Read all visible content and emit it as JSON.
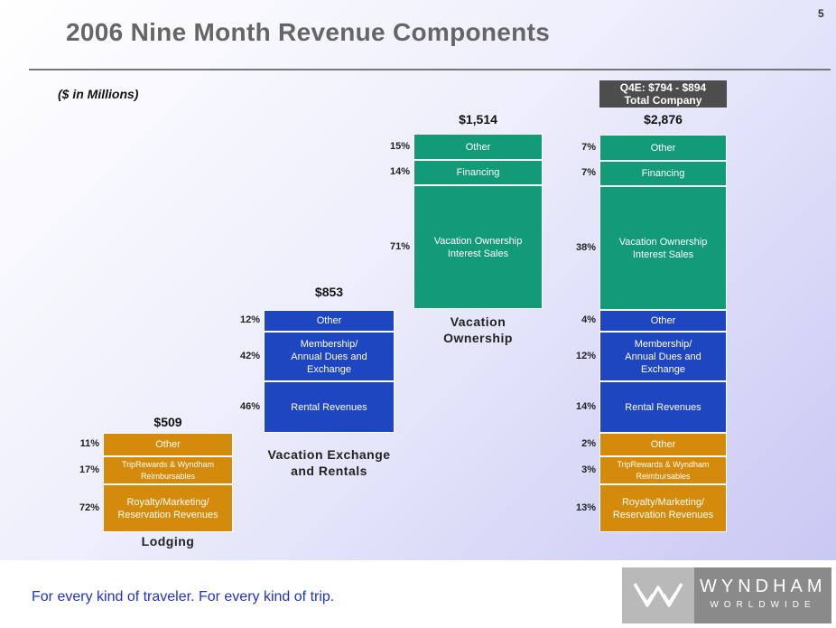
{
  "page_number": "5",
  "title": "2006 Nine Month Revenue Components",
  "units_note": "($ in Millions)",
  "q4e_note": {
    "line1": "Q4E: $794 - $894",
    "line2": "Total Company"
  },
  "footer": "For every kind of traveler. For every kind of trip.",
  "logo": {
    "name": "WYNDHAM",
    "sub": "WORLDWIDE"
  },
  "colors": {
    "lodging": "#d48a0a",
    "vacation_exchange": "#1e46c0",
    "vacation_ownership": "#139a78"
  },
  "chart_data": {
    "type": "bar",
    "stacked": true,
    "title": "2006 Nine Month Revenue Components",
    "units": "$ in Millions",
    "bars": [
      {
        "id": "lodging",
        "name": "Lodging",
        "total_label": "$509",
        "total": 509,
        "segments": [
          {
            "label": "Royalty/Marketing/\nReservation Revenues",
            "pct_label": "72%",
            "pct": 72,
            "color_key": "lodging"
          },
          {
            "label": "TripRewards & Wyndham\nReimbursables",
            "pct_label": "17%",
            "pct": 17,
            "color_key": "lodging",
            "small": true
          },
          {
            "label": "Other",
            "pct_label": "11%",
            "pct": 11,
            "color_key": "lodging"
          }
        ]
      },
      {
        "id": "vacation_exchange",
        "name": "Vacation Exchange\nand Rentals",
        "total_label": "$853",
        "total": 853,
        "segments": [
          {
            "label": "Rental Revenues",
            "pct_label": "46%",
            "pct": 46,
            "color_key": "vacation_exchange"
          },
          {
            "label": "Membership/\nAnnual Dues and\nExchange",
            "pct_label": "42%",
            "pct": 42,
            "color_key": "vacation_exchange"
          },
          {
            "label": "Other",
            "pct_label": "12%",
            "pct": 12,
            "color_key": "vacation_exchange"
          }
        ]
      },
      {
        "id": "vacation_ownership",
        "name": "Vacation\nOwnership",
        "total_label": "$1,514",
        "total": 1514,
        "segments": [
          {
            "label": "Vacation Ownership\nInterest Sales",
            "pct_label": "71%",
            "pct": 71,
            "color_key": "vacation_ownership"
          },
          {
            "label": "Financing",
            "pct_label": "14%",
            "pct": 14,
            "color_key": "vacation_ownership"
          },
          {
            "label": "Other",
            "pct_label": "15%",
            "pct": 15,
            "color_key": "vacation_ownership"
          }
        ]
      },
      {
        "id": "total_company",
        "name": "",
        "total_label": "$2,876",
        "total": 2876,
        "segments": [
          {
            "label": "Royalty/Marketing/\nReservation Revenues",
            "pct_label": "13%",
            "pct": 13,
            "color_key": "lodging"
          },
          {
            "label": "TripRewards & Wyndham\nReimbursables",
            "pct_label": "3%",
            "pct": 3,
            "color_key": "lodging",
            "small": true
          },
          {
            "label": "Other",
            "pct_label": "2%",
            "pct": 2,
            "color_key": "lodging"
          },
          {
            "label": "Rental Revenues",
            "pct_label": "14%",
            "pct": 14,
            "color_key": "vacation_exchange"
          },
          {
            "label": "Membership/\nAnnual Dues and\nExchange",
            "pct_label": "12%",
            "pct": 12,
            "color_key": "vacation_exchange"
          },
          {
            "label": "Other",
            "pct_label": "4%",
            "pct": 4,
            "color_key": "vacation_exchange"
          },
          {
            "label": "Vacation Ownership\nInterest Sales",
            "pct_label": "38%",
            "pct": 38,
            "color_key": "vacation_ownership"
          },
          {
            "label": "Financing",
            "pct_label": "7%",
            "pct": 7,
            "color_key": "vacation_ownership"
          },
          {
            "label": "Other",
            "pct_label": "7%",
            "pct": 7,
            "color_key": "vacation_ownership"
          }
        ]
      }
    ]
  }
}
